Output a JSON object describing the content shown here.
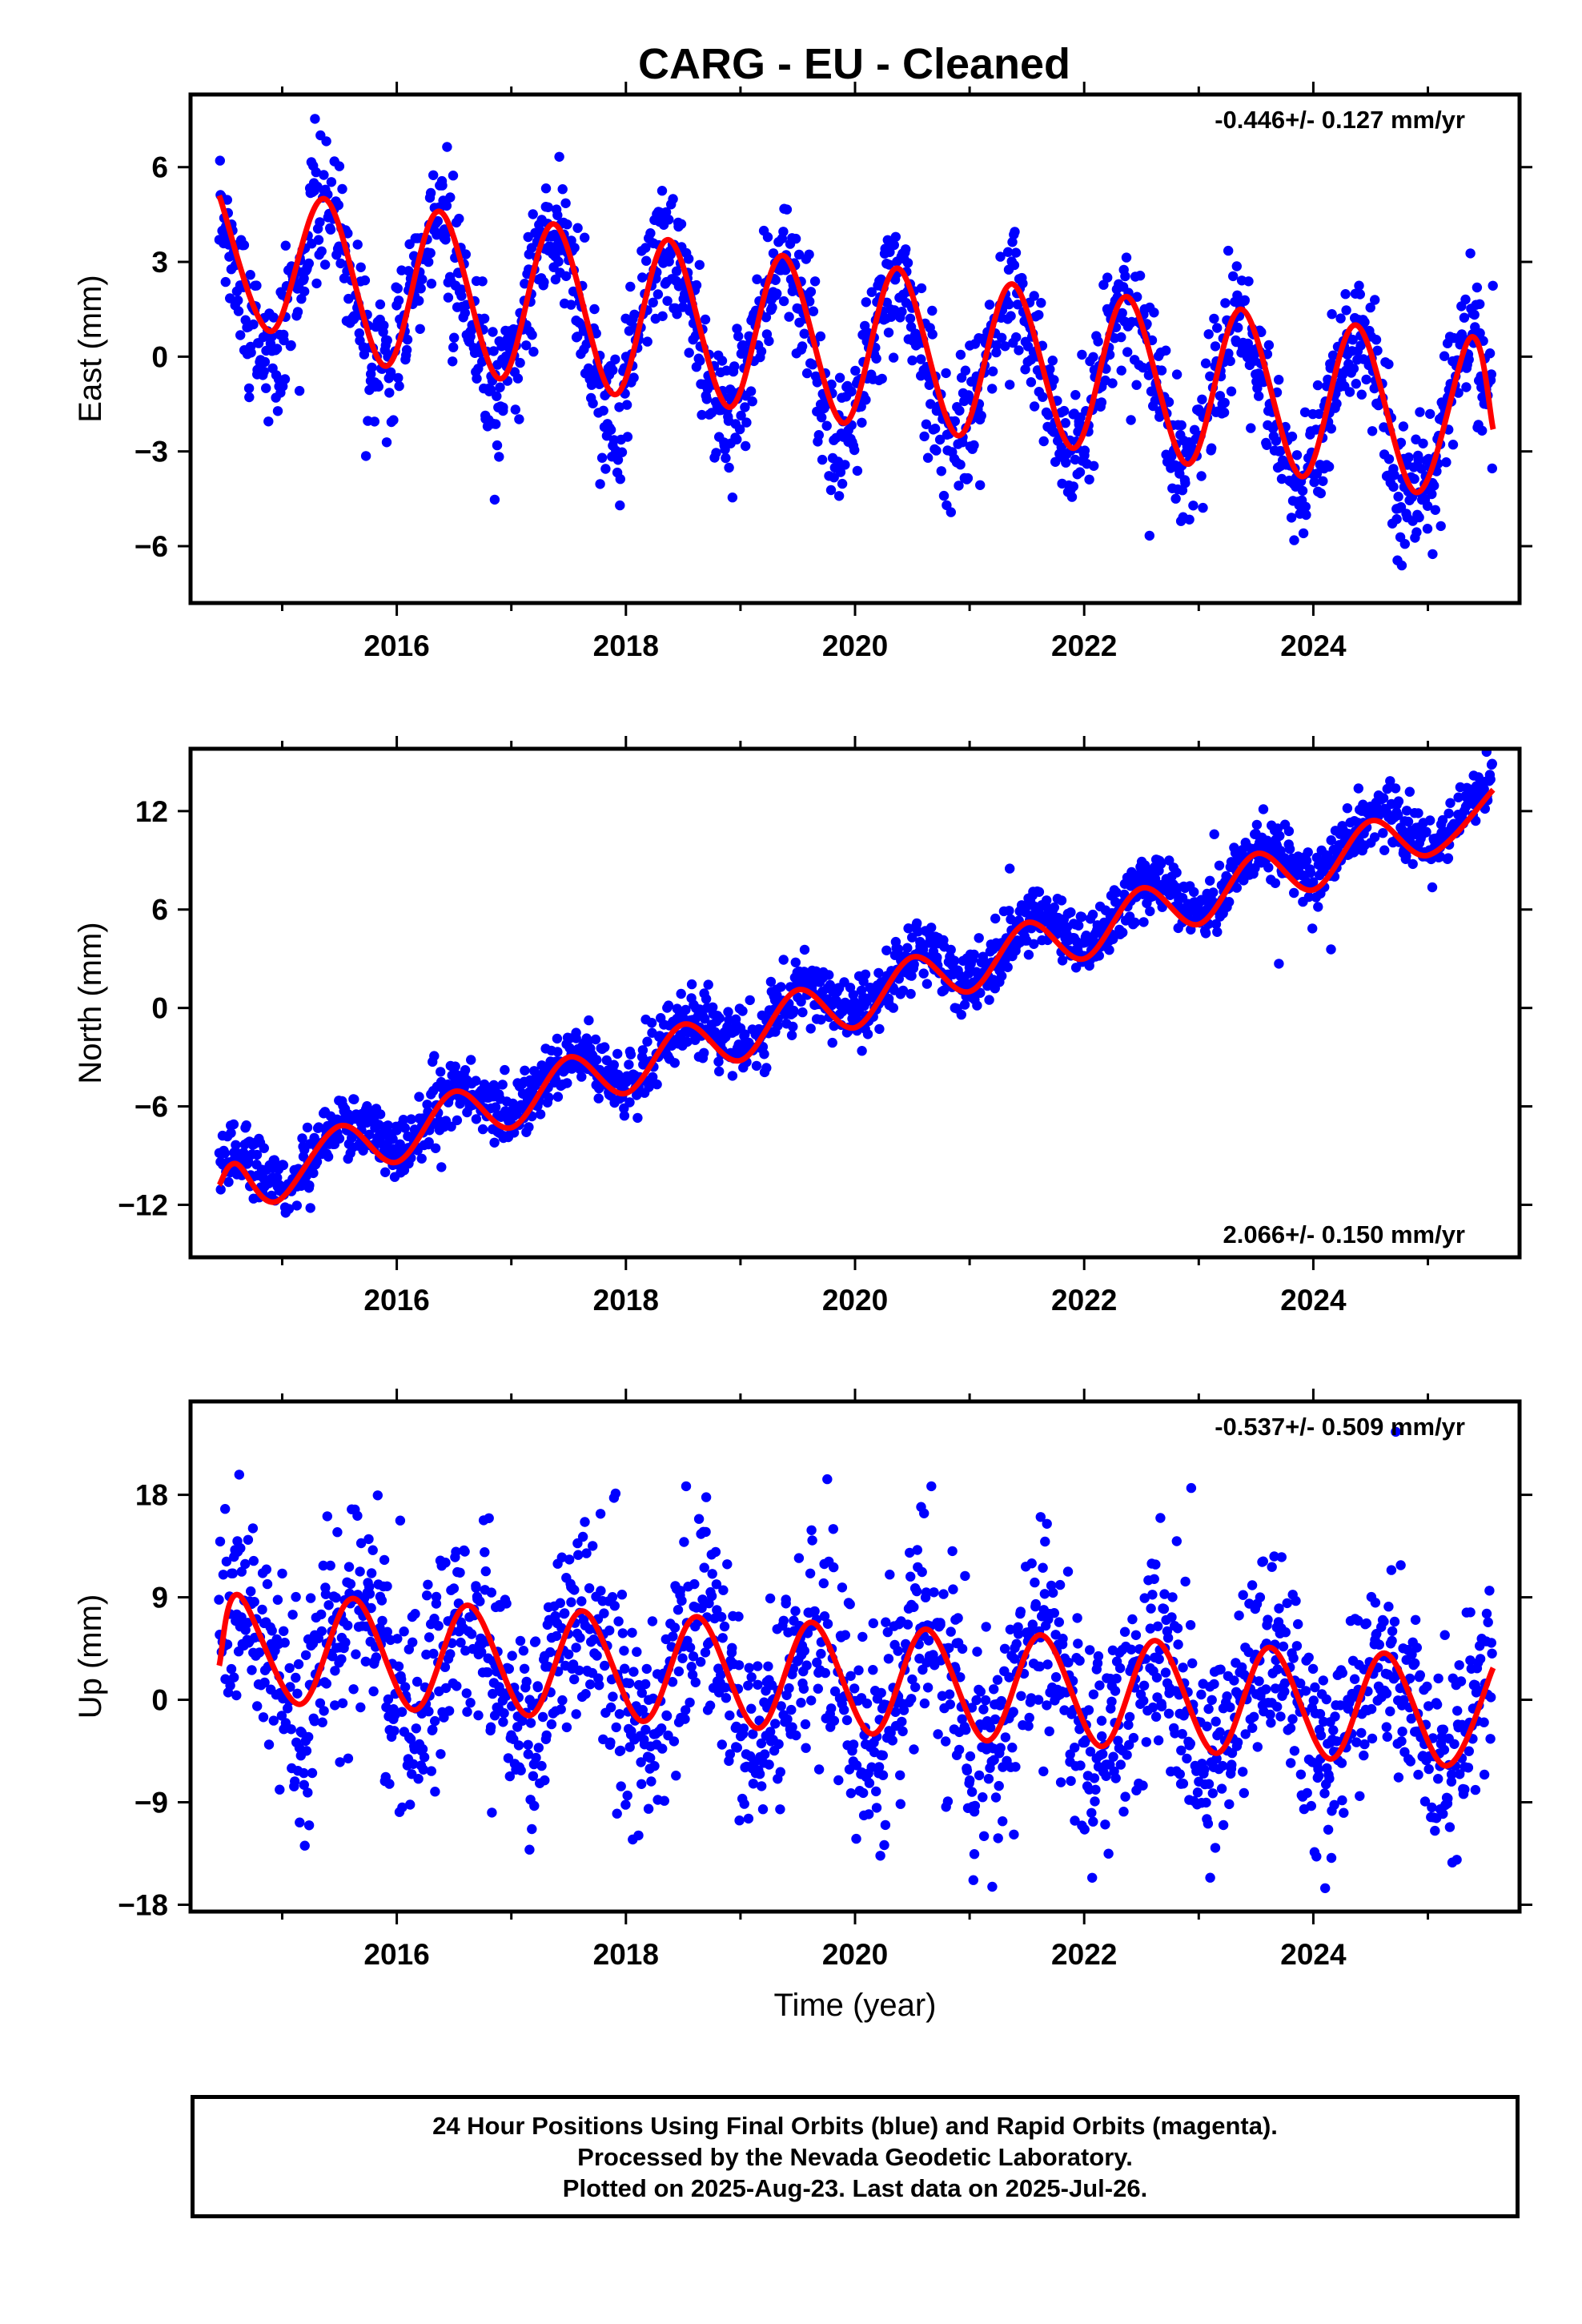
{
  "colors": {
    "points": "#0000ff",
    "model": "#ff0000",
    "axes": "#000000"
  },
  "chart_data": {
    "title": "CARG  - EU - Cleaned",
    "type": "scatter",
    "xlabel": "Time (year)",
    "xlim": [
      2014.2,
      2025.8
    ],
    "x_ticks": [
      "2016",
      "2018",
      "2020",
      "2022",
      "2024"
    ],
    "data_span": [
      2014.45,
      2025.57
    ],
    "panels": [
      {
        "key": "east",
        "ylabel": "East (mm)",
        "ylim": [
          -7.8,
          8.3
        ],
        "y_ticks": [
          6,
          3,
          0,
          -3,
          -6
        ],
        "y_tick_labels": [
          "6",
          "3",
          "0",
          "−3",
          "−6"
        ],
        "rate_label": "-0.446+/- 0.127 mm/yr",
        "rate_position": "top-right",
        "series": [
          {
            "name": "Final Orbits",
            "style": "points",
            "color": "blue"
          },
          {
            "name": "Model",
            "style": "line",
            "color": "red"
          }
        ],
        "model": {
          "start": 2014.45,
          "intercept": 2.6,
          "rate": -0.446,
          "annual_amplitude": 2.5,
          "annual_peak": 0.37,
          "noise_sd": 1.05
        },
        "model_points": [
          [
            2014.45,
            5.1
          ],
          [
            2014.9,
            0.8
          ],
          [
            2015.37,
            5.0
          ],
          [
            2015.9,
            -0.3
          ],
          [
            2016.37,
            4.6
          ],
          [
            2016.9,
            -0.7
          ],
          [
            2017.37,
            4.2
          ],
          [
            2017.9,
            -1.2
          ],
          [
            2018.37,
            3.7
          ],
          [
            2018.9,
            -1.6
          ],
          [
            2019.37,
            3.2
          ],
          [
            2019.9,
            -2.1
          ],
          [
            2020.37,
            2.8
          ],
          [
            2020.9,
            -2.5
          ],
          [
            2021.37,
            2.3
          ],
          [
            2021.9,
            -2.9
          ],
          [
            2022.37,
            1.9
          ],
          [
            2022.9,
            -3.4
          ],
          [
            2023.37,
            1.5
          ],
          [
            2023.9,
            -3.8
          ],
          [
            2024.37,
            1.0
          ],
          [
            2024.9,
            -4.3
          ],
          [
            2025.37,
            0.6
          ],
          [
            2025.57,
            -2.3
          ]
        ]
      },
      {
        "key": "north",
        "ylabel": "North (mm)",
        "ylim": [
          -15.2,
          15.8
        ],
        "y_ticks": [
          12,
          6,
          0,
          -6,
          -12
        ],
        "y_tick_labels": [
          "12",
          "6",
          "0",
          "−6",
          "−12"
        ],
        "rate_label": "2.066+/- 0.150 mm/yr",
        "rate_position": "bottom-right",
        "series": [
          {
            "name": "Final Orbits",
            "style": "points",
            "color": "blue"
          },
          {
            "name": "Model",
            "style": "line",
            "color": "red"
          }
        ],
        "model": {
          "start": 2014.45,
          "intercept": -10.5,
          "rate": 2.066,
          "annual_amplitude": 1.3,
          "annual_peak": 0.55,
          "noise_sd": 0.95
        },
        "model_points": [
          [
            2014.45,
            -10.8
          ],
          [
            2014.6,
            -9.5
          ],
          [
            2014.95,
            -11.8
          ],
          [
            2015.5,
            -7.2
          ],
          [
            2016.0,
            -9.4
          ],
          [
            2016.5,
            -5.1
          ],
          [
            2017.0,
            -7.3
          ],
          [
            2017.5,
            -3.0
          ],
          [
            2018.0,
            -5.2
          ],
          [
            2018.5,
            -1.0
          ],
          [
            2019.0,
            -3.2
          ],
          [
            2019.5,
            1.1
          ],
          [
            2020.0,
            -1.2
          ],
          [
            2020.5,
            3.1
          ],
          [
            2021.0,
            1.0
          ],
          [
            2021.5,
            5.2
          ],
          [
            2022.0,
            3.0
          ],
          [
            2022.5,
            7.3
          ],
          [
            2023.0,
            5.1
          ],
          [
            2023.5,
            9.4
          ],
          [
            2024.0,
            7.2
          ],
          [
            2024.5,
            11.4
          ],
          [
            2025.0,
            9.3
          ],
          [
            2025.57,
            13.3
          ]
        ]
      },
      {
        "key": "up",
        "ylabel": "Up (mm)",
        "ylim": [
          -18.6,
          26.2
        ],
        "y_ticks": [
          18,
          9,
          0,
          -9,
          -18
        ],
        "y_tick_labels": [
          "18",
          "9",
          "0",
          "−9",
          "−18"
        ],
        "rate_label": "-0.537+/- 0.509 mm/yr",
        "rate_position": "top-right",
        "series": [
          {
            "name": "Final Orbits",
            "style": "points",
            "color": "blue"
          },
          {
            "name": "Model",
            "style": "line",
            "color": "red"
          }
        ],
        "model": {
          "start": 2014.45,
          "intercept": 4.3,
          "rate": -0.537,
          "annual_amplitude": 5.0,
          "annual_peak": 0.62,
          "noise_sd": 4.6
        },
        "model_points": [
          [
            2014.45,
            3.0
          ],
          [
            2014.62,
            9.2
          ],
          [
            2015.15,
            -0.4
          ],
          [
            2015.62,
            8.9
          ],
          [
            2016.15,
            -0.9
          ],
          [
            2016.62,
            8.3
          ],
          [
            2017.15,
            -1.4
          ],
          [
            2017.62,
            7.8
          ],
          [
            2018.15,
            -1.9
          ],
          [
            2018.62,
            7.3
          ],
          [
            2019.15,
            -2.5
          ],
          [
            2019.62,
            6.8
          ],
          [
            2020.15,
            -3.0
          ],
          [
            2020.62,
            6.2
          ],
          [
            2021.15,
            -3.6
          ],
          [
            2021.62,
            5.7
          ],
          [
            2022.15,
            -4.1
          ],
          [
            2022.62,
            5.2
          ],
          [
            2023.15,
            -4.7
          ],
          [
            2023.62,
            4.6
          ],
          [
            2024.15,
            -5.2
          ],
          [
            2024.62,
            4.1
          ],
          [
            2025.15,
            -5.8
          ],
          [
            2025.57,
            2.8
          ]
        ]
      }
    ]
  },
  "footer": {
    "line1": "24 Hour Positions Using Final Orbits (blue) and Rapid Orbits (magenta).",
    "line2": "Processed by the Nevada Geodetic Laboratory.",
    "line3": "Plotted on 2025-Aug-23. Last data on 2025-Jul-26."
  }
}
